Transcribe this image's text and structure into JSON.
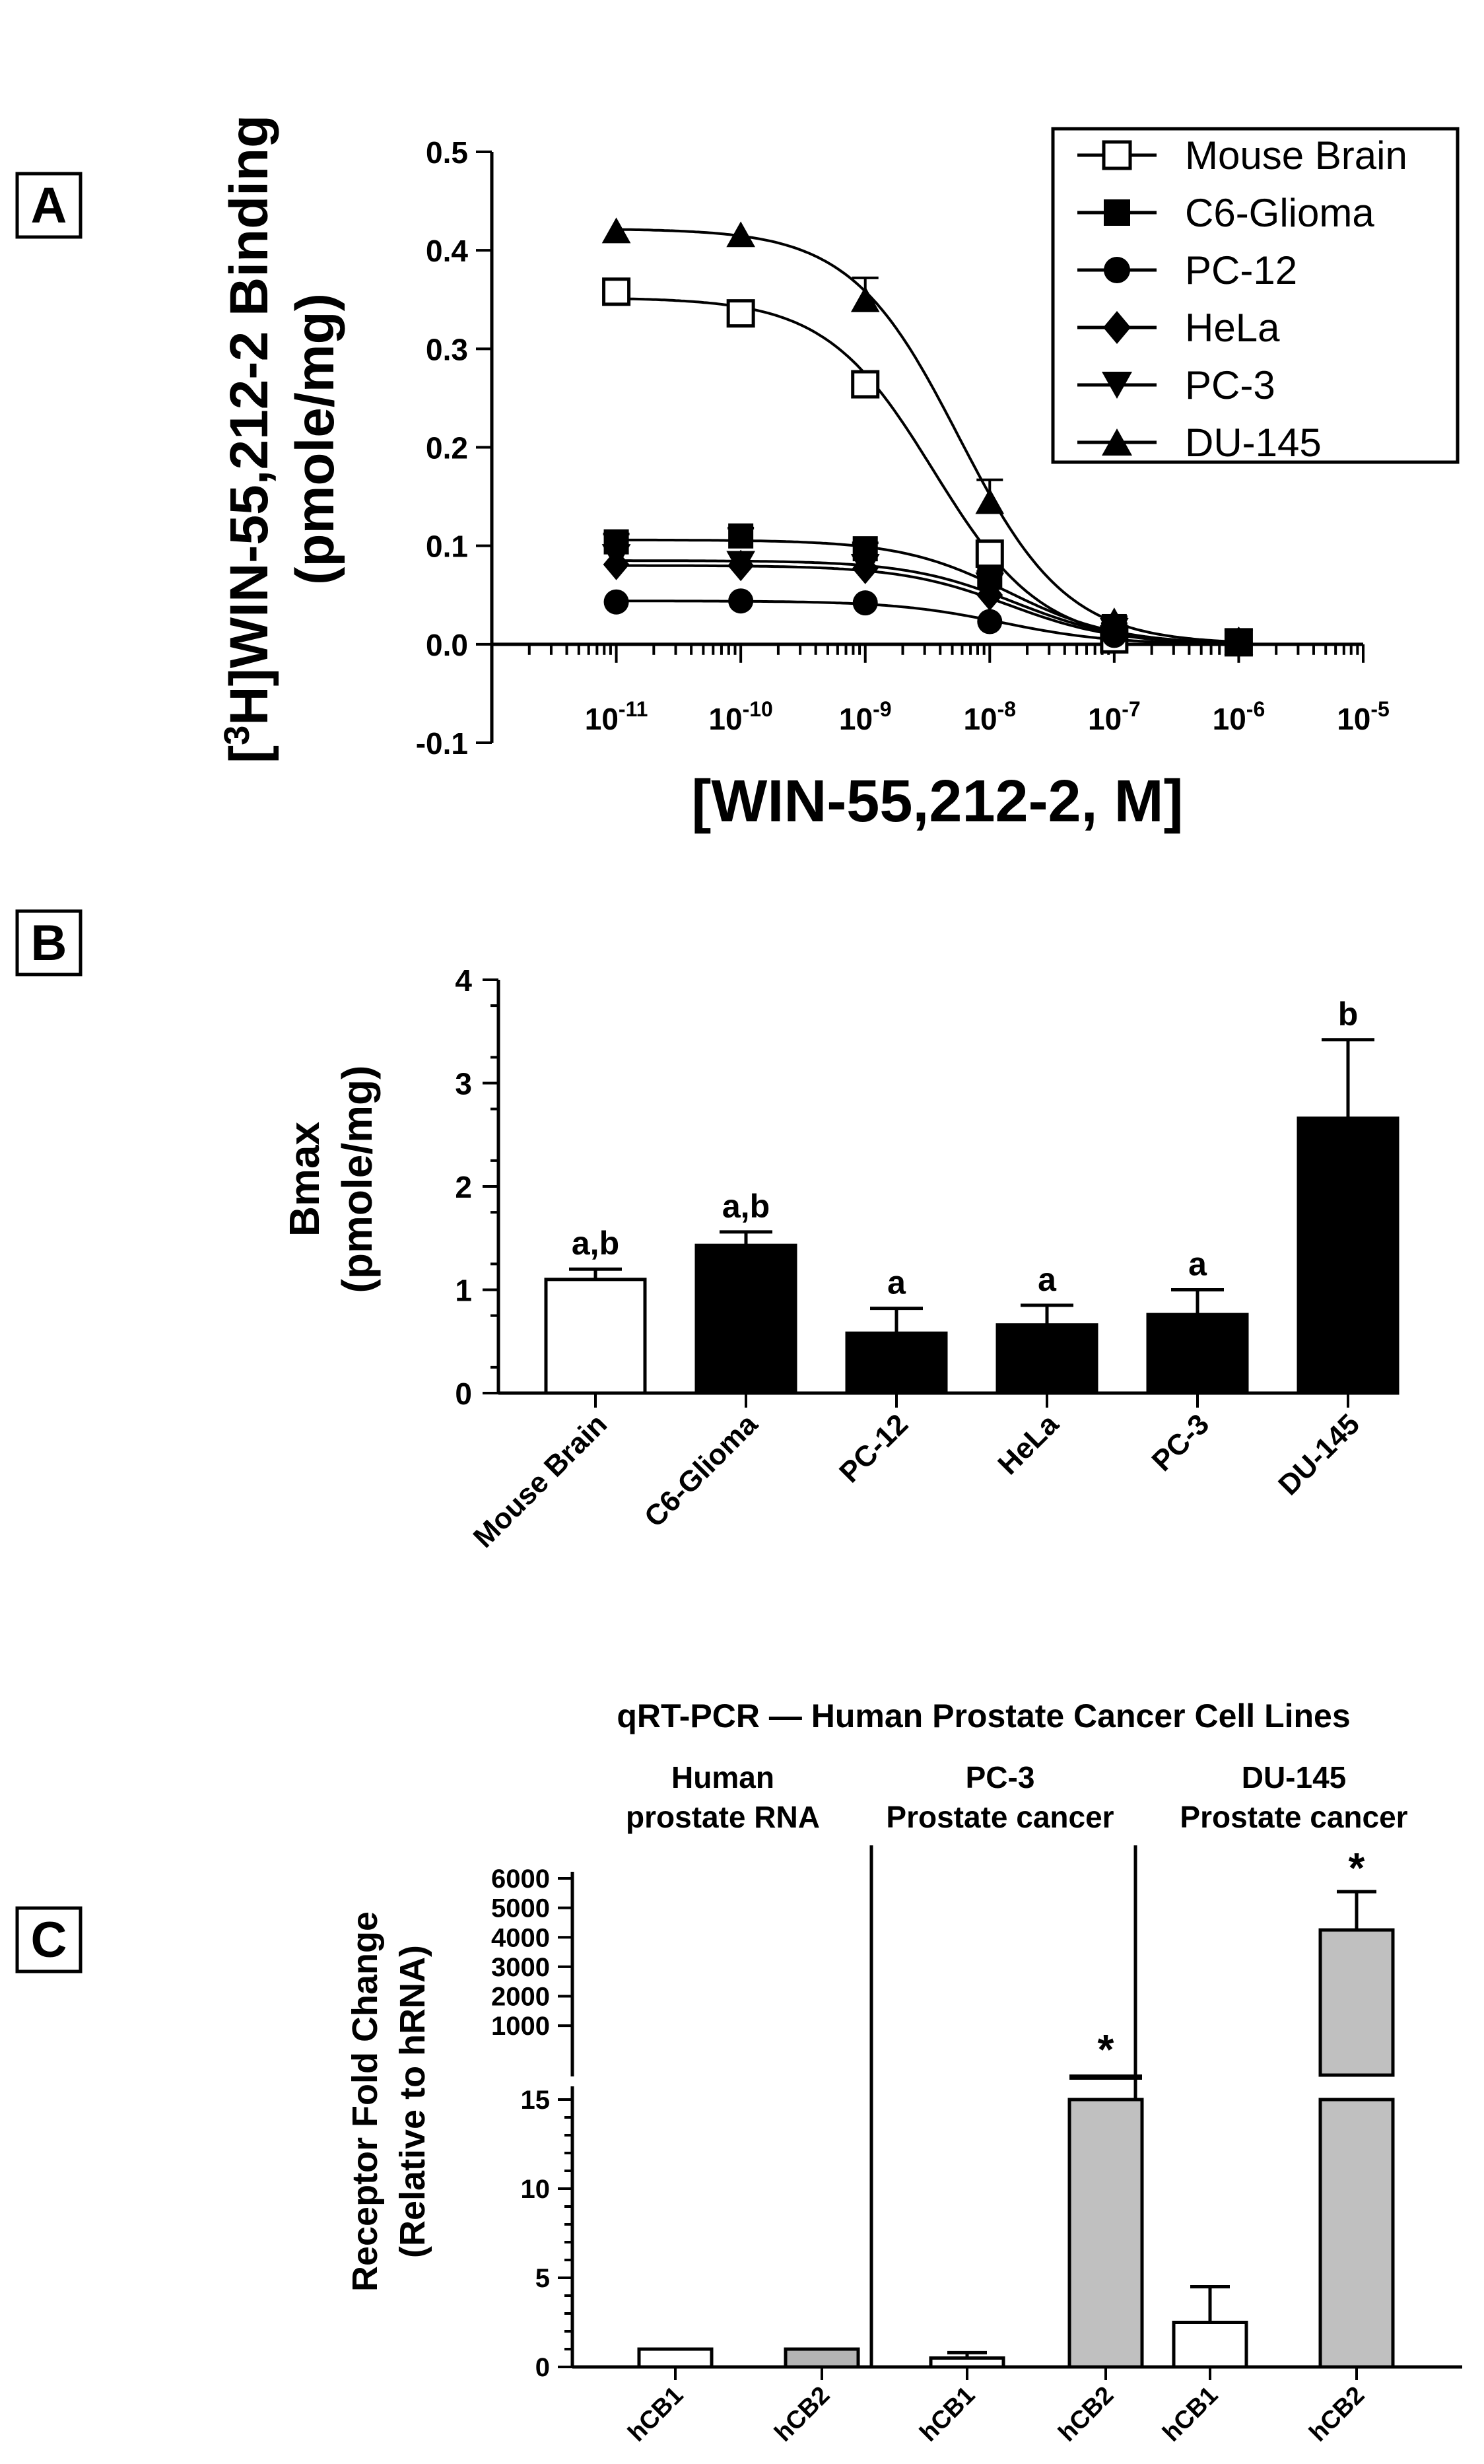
{
  "chart_data": [
    {
      "panel": "A",
      "type": "scatter",
      "title": "",
      "ylabel_line1": "[3H]WIN-55,212-2 Binding",
      "ylabel_line2": "(pmole/mg)",
      "ylabel_superscript": "3",
      "ylabel_prefix": "[",
      "ylabel_rest": "H]WIN-55,212-2 Binding",
      "xlabel": "[WIN-55,212-2, M]",
      "x_scale": "log10",
      "xlim_exp": [
        -12,
        -5
      ],
      "ylim": [
        -0.1,
        0.5
      ],
      "y_ticks": [
        "-0.1",
        "0.0",
        "0.1",
        "0.2",
        "0.3",
        "0.4",
        "0.5"
      ],
      "x_tick_exps": [
        "-11",
        "-10",
        "-9",
        "-8",
        "-7",
        "-6",
        "-5"
      ],
      "x_tick_base": "10",
      "legend_position": "top-right",
      "series": [
        {
          "name": "Mouse Brain",
          "marker": "open-square",
          "x_exp": [
            -11,
            -10,
            -9,
            -8,
            -7,
            -6
          ],
          "y": [
            0.358,
            0.336,
            0.264,
            0.092,
            0.005,
            0.002
          ],
          "err": [
            0,
            0,
            0,
            0.012,
            0,
            0
          ],
          "fit": {
            "top": 0.352,
            "bottom": 0.0,
            "logic50": -8.45,
            "slope": 1.0
          }
        },
        {
          "name": "C6-Glioma",
          "marker": "filled-square",
          "x_exp": [
            -11,
            -10,
            -9,
            -8,
            -7,
            -6
          ],
          "y": [
            0.104,
            0.11,
            0.097,
            0.068,
            0.018,
            0.002
          ],
          "err": [
            0.008,
            0.008,
            0.006,
            0.006,
            0.003,
            0
          ],
          "fit": {
            "top": 0.106,
            "bottom": 0.0,
            "logic50": -7.85,
            "slope": 1.0
          }
        },
        {
          "name": "PC-12",
          "marker": "filled-circle",
          "x_exp": [
            -11,
            -10,
            -9,
            -8,
            -7,
            -6
          ],
          "y": [
            0.043,
            0.044,
            0.042,
            0.023,
            0.009,
            0.002
          ],
          "err": [
            0,
            0,
            0,
            0,
            0,
            0
          ],
          "fit": {
            "top": 0.044,
            "bottom": 0.0,
            "logic50": -7.9,
            "slope": 1.0
          }
        },
        {
          "name": "HeLa",
          "marker": "filled-diamond",
          "x_exp": [
            -11,
            -10,
            -9,
            -8,
            -7,
            -6
          ],
          "y": [
            0.081,
            0.08,
            0.077,
            0.05,
            0.013,
            0.002
          ],
          "err": [
            0,
            0,
            0,
            0,
            0,
            0
          ],
          "fit": {
            "top": 0.08,
            "bottom": 0.0,
            "logic50": -7.85,
            "slope": 1.0
          }
        },
        {
          "name": "PC-3",
          "marker": "filled-triangle-down",
          "x_exp": [
            -11,
            -10,
            -9,
            -8,
            -7,
            -6
          ],
          "y": [
            0.089,
            0.082,
            0.079,
            0.06,
            0.014,
            0.002
          ],
          "err": [
            0,
            0,
            0,
            0,
            0,
            0
          ],
          "fit": {
            "top": 0.085,
            "bottom": 0.0,
            "logic50": -7.8,
            "slope": 1.0
          }
        },
        {
          "name": "DU-145",
          "marker": "filled-triangle-up",
          "x_exp": [
            -11,
            -10,
            -9,
            -8,
            -7,
            -6
          ],
          "y": [
            0.42,
            0.416,
            0.35,
            0.145,
            0.024,
            0.002
          ],
          "err": [
            0,
            0,
            0.022,
            0.022,
            0.004,
            0
          ],
          "fit": {
            "top": 0.422,
            "bottom": 0.0,
            "logic50": -8.25,
            "slope": 1.0
          }
        }
      ]
    },
    {
      "panel": "B",
      "type": "bar",
      "ylabel_line1": "Bmax",
      "ylabel_line2": "(pmole/mg)",
      "ylim": [
        0,
        4
      ],
      "y_ticks": [
        "0",
        "1",
        "2",
        "3",
        "4"
      ],
      "categories": [
        "Mouse Brain",
        "C6-Glioma",
        "PC-12",
        "HeLa",
        "PC-3",
        "DU-145"
      ],
      "values": [
        1.1,
        1.43,
        0.58,
        0.66,
        0.76,
        2.66
      ],
      "errors": [
        0.1,
        0.13,
        0.24,
        0.19,
        0.24,
        0.76
      ],
      "fills": [
        "#ffffff",
        "#000000",
        "#000000",
        "#000000",
        "#000000",
        "#000000"
      ],
      "annotations": [
        "a,b",
        "a,b",
        "a",
        "a",
        "a",
        "b"
      ]
    },
    {
      "panel": "C",
      "type": "bar",
      "title": "qRT-PCR — Human Prostate Cancer Cell Lines",
      "ylabel_line1": "Receptor Fold Change",
      "ylabel_line2": "(Relative to hRNA)",
      "groups": [
        {
          "line1": "Human",
          "line2": "prostate RNA"
        },
        {
          "line1": "PC-3",
          "line2": "Prostate cancer"
        },
        {
          "line1": "DU-145",
          "line2": "Prostate cancer"
        }
      ],
      "categories": [
        "hCB1",
        "hCB2",
        "hCB1",
        "hCB2",
        "hCB1",
        "hCB2"
      ],
      "values": [
        1,
        1,
        0.5,
        120,
        2.5,
        4250
      ],
      "errors": [
        0,
        0,
        0.3,
        30,
        2.0,
        1300
      ],
      "fills": [
        "#ffffff",
        "#b4b4b4",
        "#ffffff",
        "#c0c0c0",
        "#ffffff",
        "#c0c0c0"
      ],
      "annotations": [
        "",
        "",
        "",
        "*",
        "",
        "*"
      ],
      "ylim_lower": [
        0,
        15
      ],
      "y_ticks_lower": [
        "0",
        "5",
        "10",
        "15"
      ],
      "ylim_upper": [
        0,
        6000
      ],
      "y_ticks_upper": [
        "1000",
        "2000",
        "3000",
        "4000",
        "5000",
        "6000"
      ]
    }
  ],
  "panel_labels": {
    "a": "A",
    "b": "B",
    "c": "C"
  }
}
